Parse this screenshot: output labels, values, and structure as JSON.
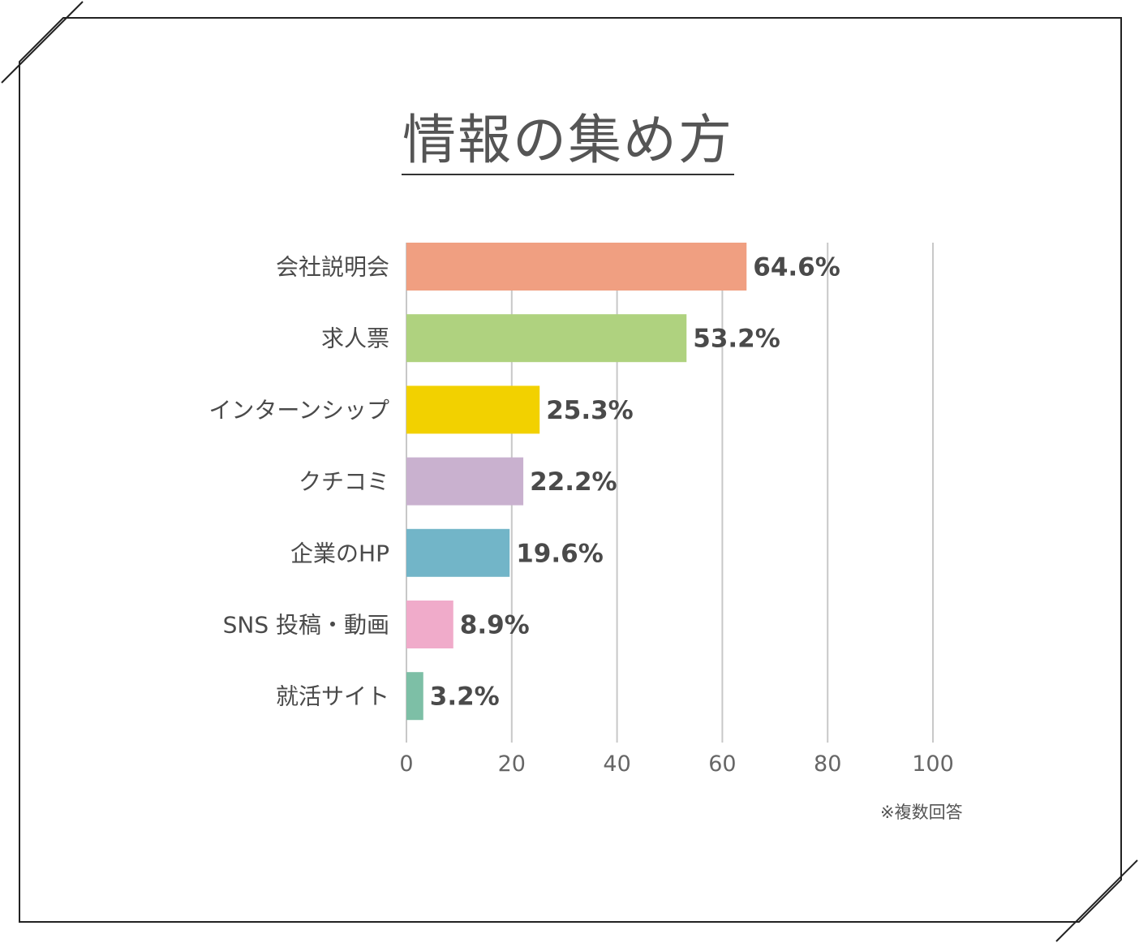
{
  "title": "情報の集め方",
  "note": "※複数回答",
  "chart_data": {
    "type": "bar",
    "orientation": "horizontal",
    "categories": [
      "会社説明会",
      "求人票",
      "インターンシップ",
      "クチコミ",
      "企業のHP",
      "SNS 投稿・動画",
      "就活サイト"
    ],
    "values": [
      64.6,
      53.2,
      25.3,
      22.2,
      19.6,
      8.9,
      3.2
    ],
    "value_labels": [
      "64.6%",
      "53.2%",
      "25.3%",
      "22.2%",
      "19.6%",
      "8.9%",
      "3.2%"
    ],
    "colors": [
      "#f09f81",
      "#afd27f",
      "#f2d100",
      "#c9b1cf",
      "#72b5c8",
      "#f0abca",
      "#7dbfa6"
    ],
    "xticks": [
      0,
      20,
      40,
      60,
      80,
      100
    ],
    "xtick_labels": [
      "0",
      "20",
      "40",
      "60",
      "80",
      "100"
    ],
    "xlim": [
      0,
      100
    ],
    "grid": true
  }
}
